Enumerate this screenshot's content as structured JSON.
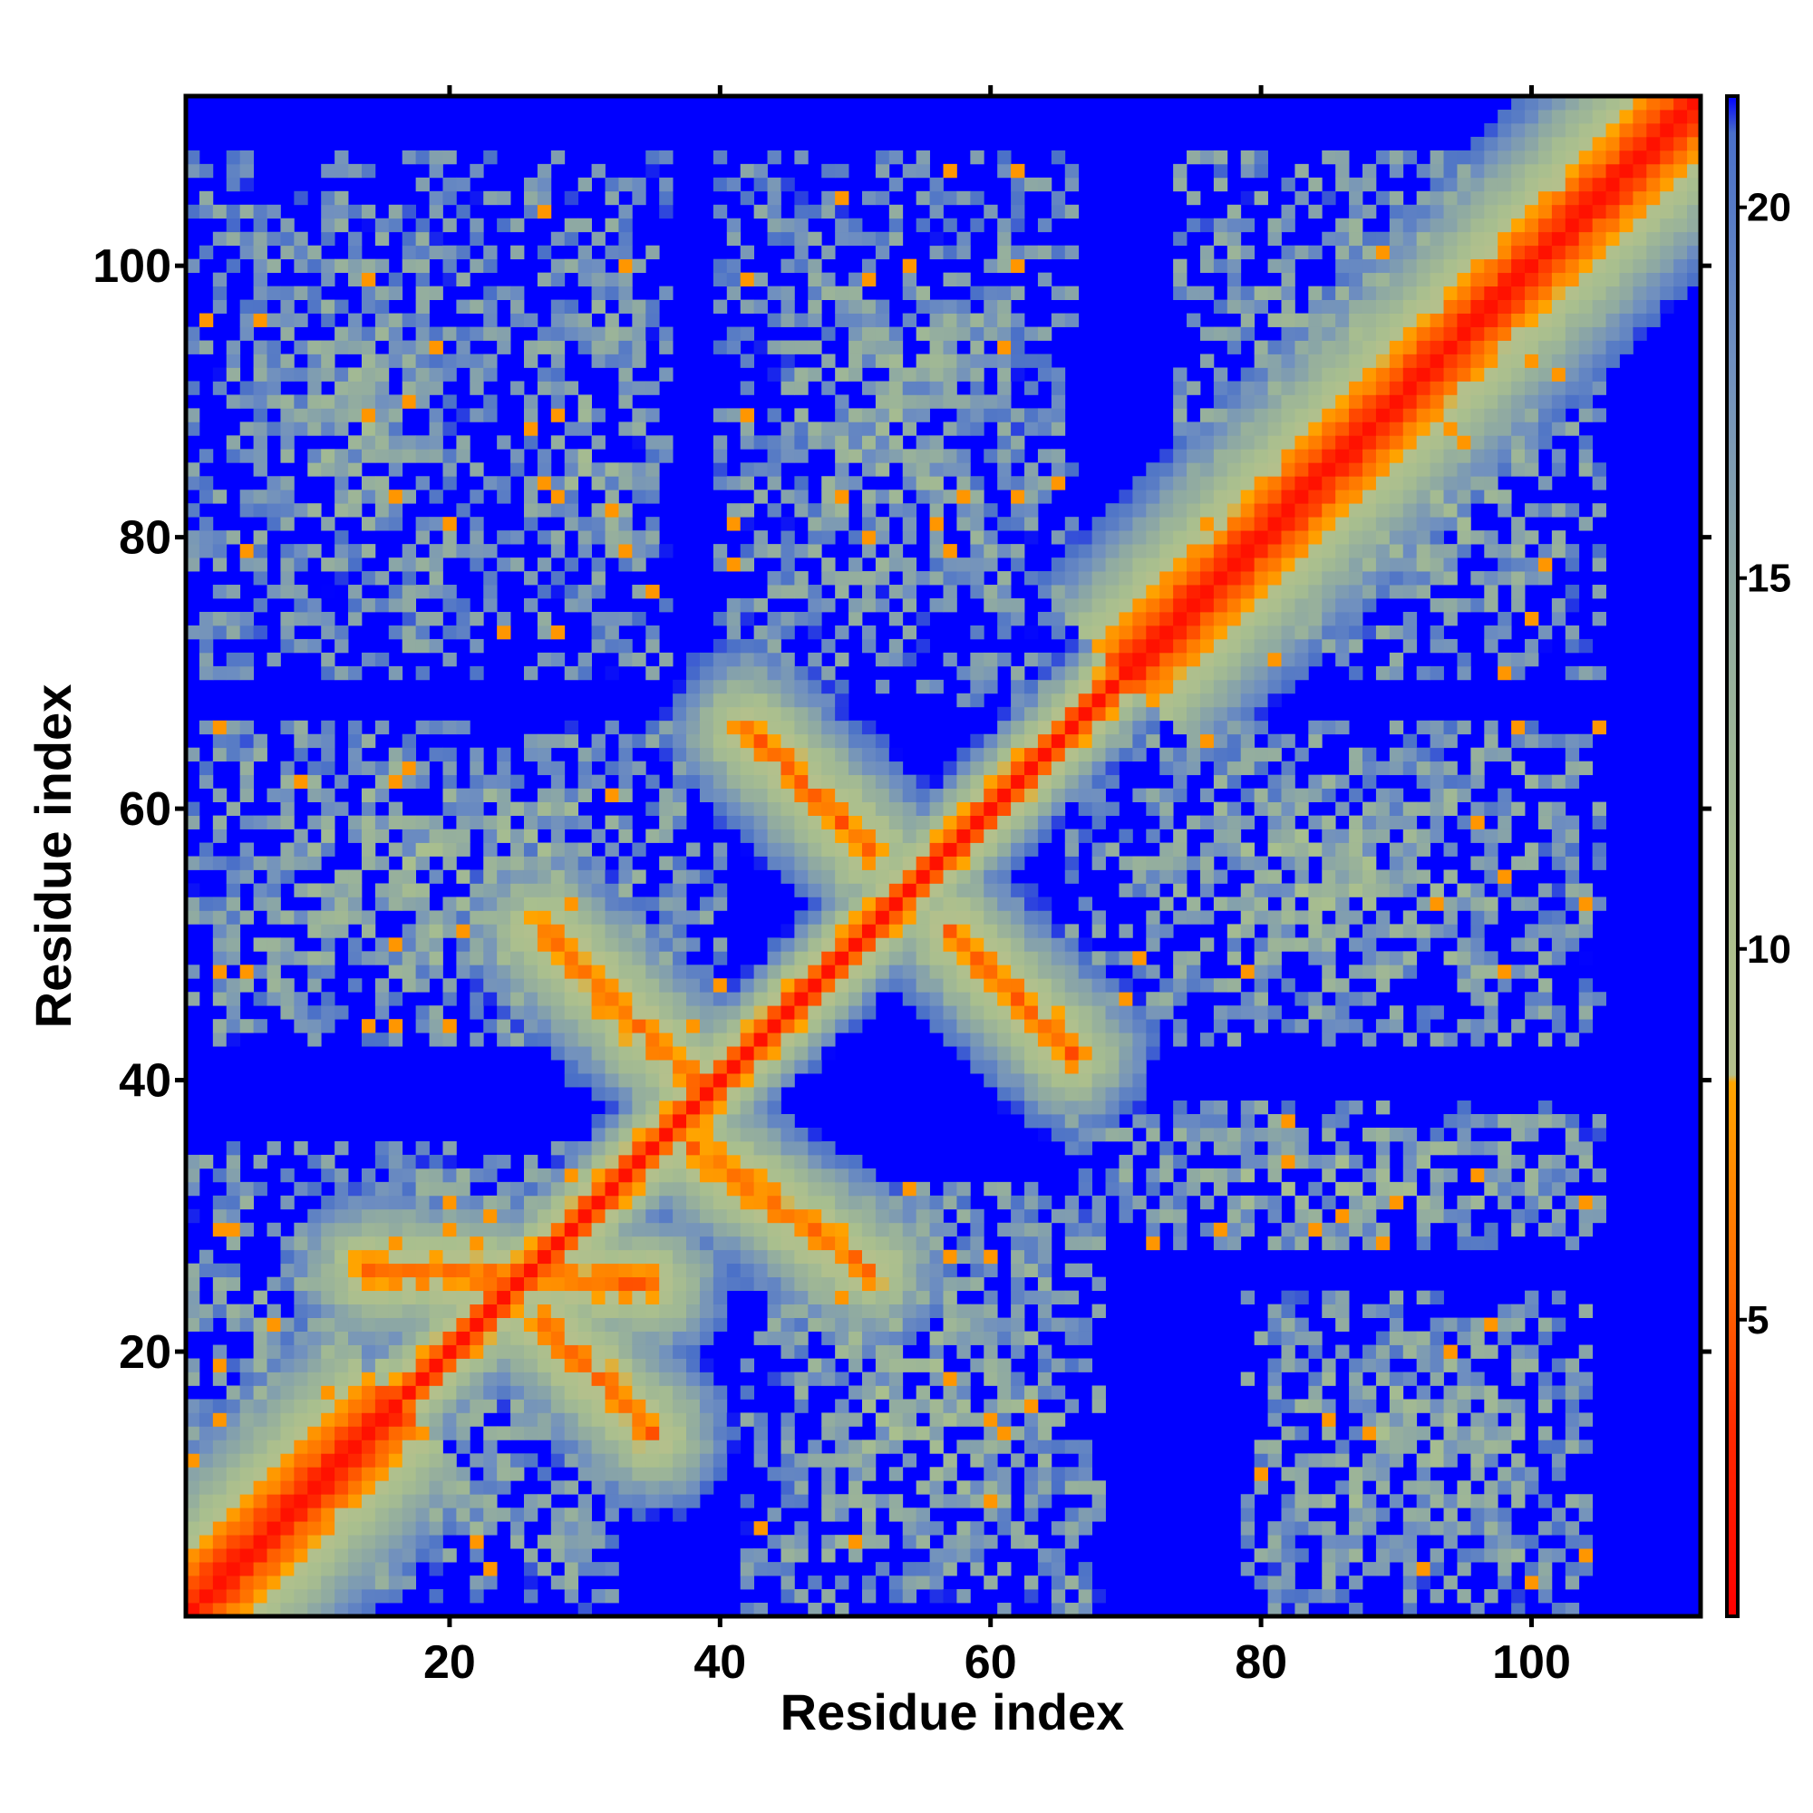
{
  "chart_data": {
    "type": "heatmap",
    "title": "",
    "xlabel": "Residue index",
    "ylabel": "Residue index",
    "xlim": [
      0.5,
      112.5
    ],
    "ylim": [
      0.5,
      112.5
    ],
    "n_residues": 112,
    "x_ticks": [
      20,
      40,
      60,
      80,
      100
    ],
    "y_ticks": [
      20,
      40,
      60,
      80,
      100
    ],
    "x_tick_labels": [
      "20",
      "40",
      "60",
      "80",
      "100"
    ],
    "y_tick_labels": [
      "20",
      "40",
      "60",
      "80",
      "100"
    ],
    "colorbar": {
      "min": 1,
      "max": 21.5,
      "ticks": [
        5,
        10,
        15,
        20
      ],
      "tick_labels": [
        "5",
        "10",
        "15",
        "20"
      ],
      "stops": [
        {
          "value": 1,
          "color": "#ff0000"
        },
        {
          "value": 3.5,
          "color": "#ff2a00"
        },
        {
          "value": 5.5,
          "color": "#ff6a00"
        },
        {
          "value": 8.2,
          "color": "#ffa500"
        },
        {
          "value": 8.3,
          "color": "#b4c08c"
        },
        {
          "value": 11,
          "color": "#a9bf8e"
        },
        {
          "value": 15,
          "color": "#8ea9a3"
        },
        {
          "value": 18,
          "color": "#6f8fc0"
        },
        {
          "value": 21,
          "color": "#4a70c8"
        },
        {
          "value": 21.5,
          "color": "#0000ff"
        }
      ]
    },
    "background_color": "#0000ff",
    "cutoff_value": 21.5,
    "contact_features": [
      {
        "kind": "diagonal",
        "description": "self-contact main diagonal",
        "from": 1,
        "to": 112
      },
      {
        "kind": "antiparallel_strand_pair",
        "a": [
          14,
          26
        ],
        "b": [
          35,
          25
        ]
      },
      {
        "kind": "antiparallel_strand_pair",
        "a": [
          27,
          22
        ],
        "b": [
          35,
          14
        ]
      },
      {
        "kind": "antiparallel_strand_pair",
        "a": [
          27,
          51
        ],
        "b": [
          38,
          40
        ]
      },
      {
        "kind": "antiparallel_strand_pair",
        "a": [
          38,
          35
        ],
        "b": [
          51,
          26
        ]
      },
      {
        "kind": "antiparallel_strand_pair",
        "a": [
          42,
          66
        ],
        "b": [
          51,
          57
        ]
      },
      {
        "kind": "antiparallel_strand_pair",
        "a": [
          57,
          51
        ],
        "b": [
          66,
          42
        ]
      },
      {
        "kind": "helix_band",
        "from": 70,
        "to": 112
      },
      {
        "kind": "helix_band",
        "from": 1,
        "to": 16
      }
    ],
    "diffuse_blocks": [
      {
        "x": [
          1,
          24
        ],
        "y": [
          70,
          108
        ],
        "level": 15
      },
      {
        "x": [
          25,
          36
        ],
        "y": [
          70,
          108
        ],
        "level": 15
      },
      {
        "x": [
          40,
          66
        ],
        "y": [
          68,
          108
        ],
        "level": 15
      },
      {
        "x": [
          1,
          40
        ],
        "y": [
          43,
          66
        ],
        "level": 14
      },
      {
        "x": [
          66,
          105
        ],
        "y": [
          43,
          66
        ],
        "level": 14
      },
      {
        "x": [
          1,
          32
        ],
        "y": [
          1,
          35
        ],
        "level": 14
      },
      {
        "x": [
          42,
          68
        ],
        "y": [
          1,
          32
        ],
        "level": 14
      },
      {
        "x": [
          66,
          105
        ],
        "y": [
          28,
          38
        ],
        "level": 14
      },
      {
        "x": [
          79,
          104
        ],
        "y": [
          1,
          24
        ],
        "level": 14
      },
      {
        "x": [
          74,
          105
        ],
        "y": [
          70,
          108
        ],
        "level": 14
      }
    ]
  }
}
